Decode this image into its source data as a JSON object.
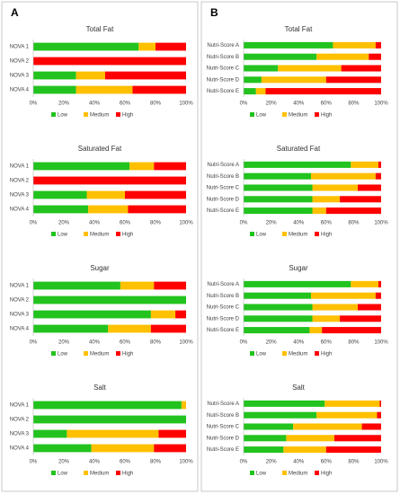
{
  "panel_labels": [
    "A",
    "B"
  ],
  "chart_data": [
    {
      "type": "stacked-bar",
      "title": "Total Fat",
      "categories": [
        "NOVA 1",
        "NOVA 2",
        "NOVA 3",
        "NOVA 4"
      ],
      "series": [
        {
          "name": "Low",
          "color": "#22c31e",
          "values": [
            69,
            0,
            28,
            28
          ]
        },
        {
          "name": "Medium",
          "color": "#ffc000",
          "values": [
            11,
            0,
            19,
            37
          ]
        },
        {
          "name": "High",
          "color": "#ff0000",
          "values": [
            20,
            100,
            53,
            35
          ]
        }
      ],
      "xlim": [
        0,
        100
      ],
      "xticks": [
        {
          "value": 0,
          "label": "0%"
        },
        {
          "value": 20,
          "label": "20%"
        },
        {
          "value": 40,
          "label": "40%"
        },
        {
          "value": 60,
          "label": "60%"
        },
        {
          "value": 80,
          "label": "80%"
        },
        {
          "value": 100,
          "label": "100%"
        }
      ],
      "grid": false
    },
    {
      "type": "stacked-bar",
      "title": "Saturated Fat",
      "categories": [
        "NOVA 1",
        "NOVA 2",
        "NOVA 3",
        "NOVA 4"
      ],
      "series": [
        {
          "name": "Low",
          "color": "#22c31e",
          "values": [
            63,
            0,
            35,
            36
          ]
        },
        {
          "name": "Medium",
          "color": "#ffc000",
          "values": [
            16,
            0,
            25,
            26
          ]
        },
        {
          "name": "High",
          "color": "#ff0000",
          "values": [
            21,
            100,
            40,
            38
          ]
        }
      ],
      "xlim": [
        0,
        100
      ],
      "xticks": [
        {
          "value": 0,
          "label": "0%"
        },
        {
          "value": 20,
          "label": "20%"
        },
        {
          "value": 40,
          "label": "40%"
        },
        {
          "value": 60,
          "label": "60%"
        },
        {
          "value": 80,
          "label": "80%"
        },
        {
          "value": 100,
          "label": "100%"
        }
      ],
      "grid": false
    },
    {
      "type": "stacked-bar",
      "title": "Sugar",
      "categories": [
        "NOVA 1",
        "NOVA 2",
        "NOVA 3",
        "NOVA 4"
      ],
      "series": [
        {
          "name": "Low",
          "color": "#22c31e",
          "values": [
            57,
            100,
            77,
            49
          ]
        },
        {
          "name": "Medium",
          "color": "#ffc000",
          "values": [
            22,
            0,
            16,
            28
          ]
        },
        {
          "name": "High",
          "color": "#ff0000",
          "values": [
            21,
            0,
            7,
            23
          ]
        }
      ],
      "xlim": [
        0,
        100
      ],
      "xticks": [
        {
          "value": 0,
          "label": "0%"
        },
        {
          "value": 20,
          "label": "20%"
        },
        {
          "value": 40,
          "label": "40%"
        },
        {
          "value": 60,
          "label": "60%"
        },
        {
          "value": 80,
          "label": "80%"
        },
        {
          "value": 100,
          "label": "100%"
        }
      ],
      "grid": false
    },
    {
      "type": "stacked-bar",
      "title": "Salt",
      "categories": [
        "NOVA 1",
        "NOVA 2",
        "NOVA 3",
        "NOVA 4"
      ],
      "series": [
        {
          "name": "Low",
          "color": "#22c31e",
          "values": [
            97,
            100,
            22,
            38
          ]
        },
        {
          "name": "Medium",
          "color": "#ffc000",
          "values": [
            3,
            0,
            60,
            41
          ]
        },
        {
          "name": "High",
          "color": "#ff0000",
          "values": [
            0,
            0,
            18,
            21
          ]
        }
      ],
      "xlim": [
        0,
        100
      ],
      "xticks": [
        {
          "value": 0,
          "label": "0%"
        },
        {
          "value": 20,
          "label": "20%"
        },
        {
          "value": 40,
          "label": "40%"
        },
        {
          "value": 60,
          "label": "60%"
        },
        {
          "value": 80,
          "label": "80%"
        },
        {
          "value": 100,
          "label": "100%"
        }
      ],
      "grid": false
    },
    {
      "type": "stacked-bar",
      "title": "Total Fat",
      "categories": [
        "Nutri-Score A",
        "Nutri-Score B",
        "Nutri-Score C",
        "Nutri-Score D",
        "Nutri-Score E"
      ],
      "series": [
        {
          "name": "Low",
          "color": "#22c31e",
          "values": [
            65,
            53,
            25,
            13,
            9
          ]
        },
        {
          "name": "Medium",
          "color": "#ffc000",
          "values": [
            31,
            38,
            46,
            47,
            7
          ]
        },
        {
          "name": "High",
          "color": "#ff0000",
          "values": [
            4,
            9,
            29,
            40,
            84
          ]
        }
      ],
      "xlim": [
        0,
        100
      ],
      "xticks": [
        {
          "value": 0,
          "label": "0%"
        },
        {
          "value": 20,
          "label": "20%"
        },
        {
          "value": 40,
          "label": "40%"
        },
        {
          "value": 60,
          "label": "60%"
        },
        {
          "value": 80,
          "label": "80%"
        },
        {
          "value": 100,
          "label": "100%"
        }
      ],
      "grid": false
    },
    {
      "type": "stacked-bar",
      "title": "Saturated Fat",
      "categories": [
        "Nutri-Score A",
        "Nutri-Score B",
        "Nutri-Score C",
        "Nutri-Score D",
        "Nutri-Score E"
      ],
      "series": [
        {
          "name": "Low",
          "color": "#22c31e",
          "values": [
            78,
            49,
            50,
            50,
            50
          ]
        },
        {
          "name": "Medium",
          "color": "#ffc000",
          "values": [
            20,
            47,
            33,
            20,
            10
          ]
        },
        {
          "name": "High",
          "color": "#ff0000",
          "values": [
            2,
            4,
            17,
            30,
            40
          ]
        }
      ],
      "xlim": [
        0,
        100
      ],
      "xticks": [
        {
          "value": 0,
          "label": "0%"
        },
        {
          "value": 20,
          "label": "20%"
        },
        {
          "value": 40,
          "label": "40%"
        },
        {
          "value": 60,
          "label": "60%"
        },
        {
          "value": 80,
          "label": "80%"
        },
        {
          "value": 100,
          "label": "100%"
        }
      ],
      "grid": false
    },
    {
      "type": "stacked-bar",
      "title": "Sugar",
      "categories": [
        "Nutri-Score A",
        "Nutri-Score B",
        "Nutri-Score C",
        "Nutri-Score D",
        "Nutri-Score E"
      ],
      "series": [
        {
          "name": "Low",
          "color": "#22c31e",
          "values": [
            78,
            49,
            50,
            50,
            48
          ]
        },
        {
          "name": "Medium",
          "color": "#ffc000",
          "values": [
            20,
            47,
            33,
            20,
            9
          ]
        },
        {
          "name": "High",
          "color": "#ff0000",
          "values": [
            2,
            4,
            17,
            30,
            43
          ]
        }
      ],
      "xlim": [
        0,
        100
      ],
      "xticks": [
        {
          "value": 0,
          "label": "0%"
        },
        {
          "value": 20,
          "label": "20%"
        },
        {
          "value": 40,
          "label": "40%"
        },
        {
          "value": 60,
          "label": "60%"
        },
        {
          "value": 80,
          "label": "80%"
        },
        {
          "value": 100,
          "label": "100%"
        }
      ],
      "grid": false
    },
    {
      "type": "stacked-bar",
      "title": "Salt",
      "categories": [
        "Nutri-Score A",
        "Nutri-Score B",
        "Nutri-Score C",
        "Nutri-Score D",
        "Nutri-Score E"
      ],
      "series": [
        {
          "name": "Low",
          "color": "#22c31e",
          "values": [
            59,
            53,
            36,
            31,
            29
          ]
        },
        {
          "name": "Medium",
          "color": "#ffc000",
          "values": [
            40,
            44,
            50,
            35,
            31
          ]
        },
        {
          "name": "High",
          "color": "#ff0000",
          "values": [
            1,
            3,
            14,
            34,
            40
          ]
        }
      ],
      "xlim": [
        0,
        100
      ],
      "xticks": [
        {
          "value": 0,
          "label": "0%"
        },
        {
          "value": 20,
          "label": "20%"
        },
        {
          "value": 40,
          "label": "40%"
        },
        {
          "value": 60,
          "label": "60%"
        },
        {
          "value": 80,
          "label": "80%"
        },
        {
          "value": 100,
          "label": "100%"
        }
      ],
      "grid": false
    }
  ]
}
